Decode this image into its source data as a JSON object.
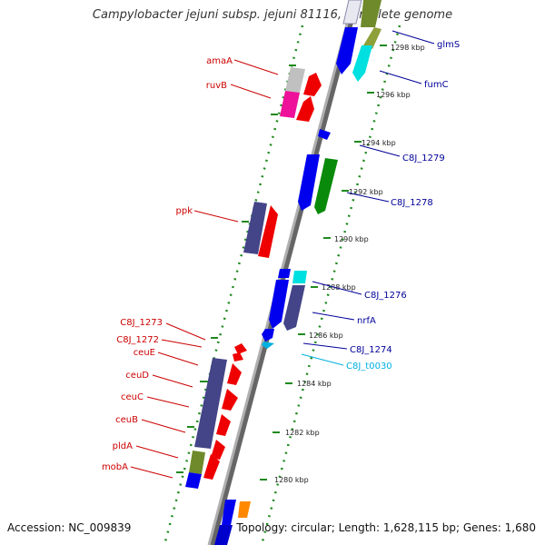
{
  "title": "Campylobacter jejuni subsp. jejuni 81116, complete genome",
  "footer": {
    "accession": "Accession: NC_009839",
    "summary": "Topology: circular; Length: 1,628,115 bp; Genes: 1,680"
  },
  "colors": {
    "backbone": "#8a8a8a",
    "ruler": "#1f8a1f",
    "forward_label": "#cc0000",
    "reverse_label": "#000099",
    "rna_label": "#00b0e0"
  },
  "ruler_labels": [
    "1298 kbp",
    "1296 kbp",
    "1294 kbp",
    "1292 kbp",
    "1290 kbp",
    "1288 kbp",
    "1286 kbp",
    "1284 kbp",
    "1282 kbp",
    "1280 kbp"
  ],
  "left_labels": [
    "amaA",
    "ruvB",
    "ppk",
    "C8J_1273",
    "C8J_1272",
    "ceuE",
    "ceuD",
    "ceuC",
    "ceuB",
    "pldA",
    "mobA"
  ],
  "right_labels": [
    "glmS",
    "fumC",
    "C8J_1279",
    "C8J_1278",
    "C8J_1276",
    "nrfA",
    "C8J_1274",
    "C8J_t0030"
  ]
}
